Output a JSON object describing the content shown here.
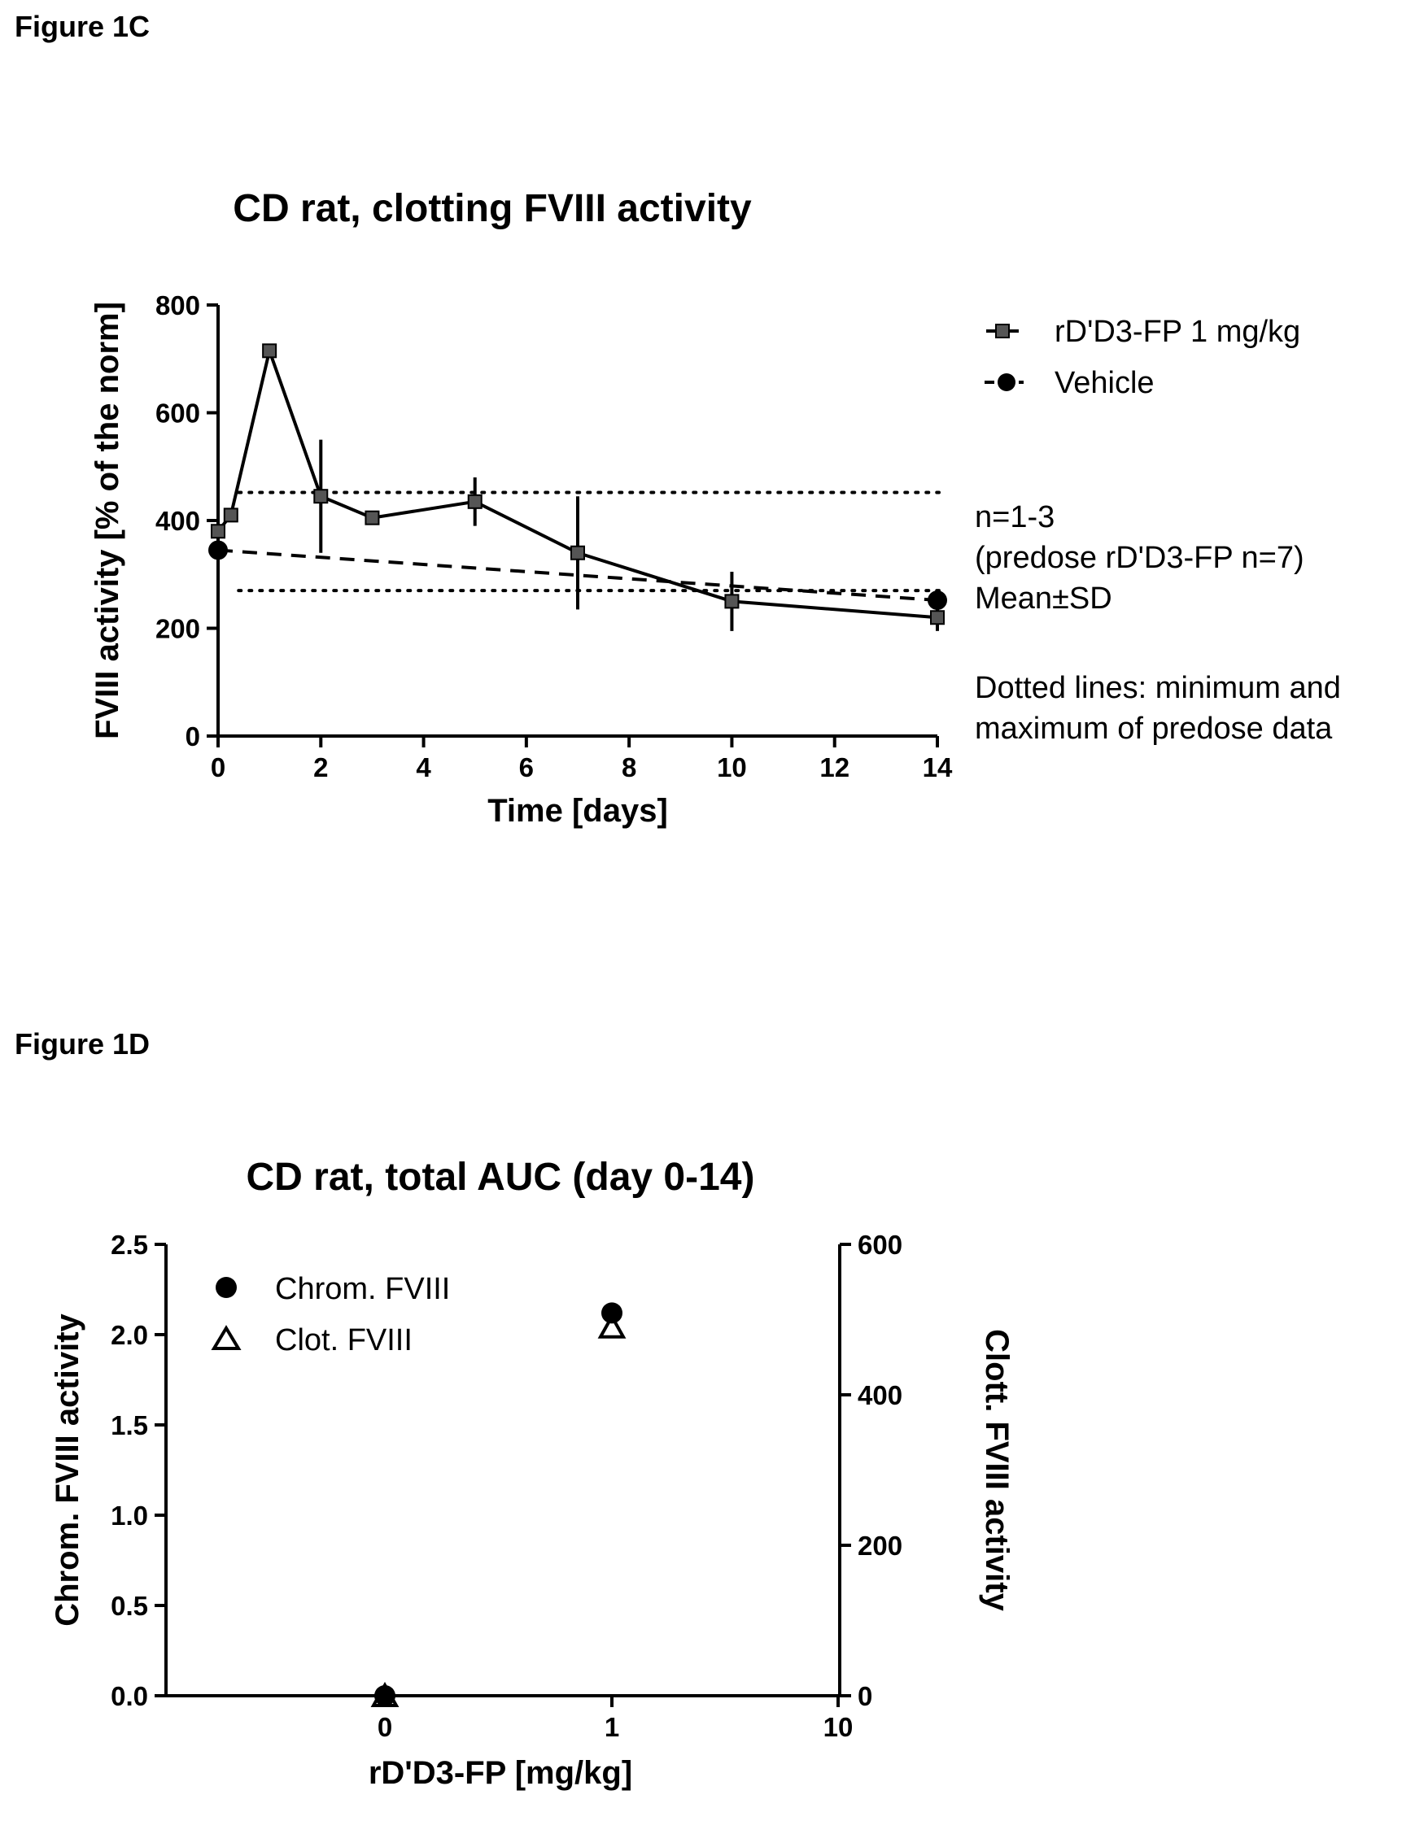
{
  "figure_c_label": "Figure 1C",
  "figure_d_label": "Figure 1D",
  "chart_data": [
    {
      "type": "line",
      "title": "CD rat, clotting FVIII activity",
      "xlabel": "Time [days]",
      "ylabel": "FVIII activity [% of the norm]",
      "xlim": [
        0,
        14
      ],
      "ylim": [
        0,
        800
      ],
      "xticks": [
        "0",
        "2",
        "4",
        "6",
        "8",
        "10",
        "12",
        "14"
      ],
      "yticks": [
        "0",
        "200",
        "400",
        "600",
        "800"
      ],
      "grid": false,
      "legend_position": "top-right",
      "series": [
        {
          "name": "rD'D3-FP 1 mg/kg",
          "marker": "square",
          "line": "solid",
          "x": [
            0,
            0.25,
            1,
            2,
            3,
            5,
            7,
            10,
            14
          ],
          "y": [
            380,
            410,
            715,
            445,
            405,
            435,
            340,
            250,
            220
          ],
          "sd": [
            0,
            0,
            0,
            105,
            0,
            45,
            105,
            55,
            25
          ]
        },
        {
          "name": "Vehicle",
          "marker": "circle",
          "line": "dashed",
          "x": [
            0,
            14
          ],
          "y": [
            345,
            252
          ],
          "sd": [
            0,
            0
          ]
        }
      ],
      "reference_lines": [
        {
          "y": 452,
          "style": "dotted"
        },
        {
          "y": 270,
          "style": "dotted"
        }
      ],
      "annotations": [
        "n=1-3",
        "(predose rD'D3-FP n=7)",
        "Mean±SD",
        "Dotted lines: minimum and",
        "maximum of predose data"
      ]
    },
    {
      "type": "scatter",
      "title": "CD rat, total AUC (day 0-14)",
      "xlabel": "rD'D3-FP [mg/kg]",
      "ylabel": "Chrom. FVIII activity",
      "y2label": "Clott. FVIII activity",
      "x_scale": "log",
      "xticks": [
        "0",
        "1",
        "10"
      ],
      "ylim": [
        0,
        2.5
      ],
      "y2lim": [
        0,
        600
      ],
      "yticks": [
        "0.0",
        "0.5",
        "1.0",
        "1.5",
        "2.0",
        "2.5"
      ],
      "y2ticks": [
        "0",
        "200",
        "400",
        "600"
      ],
      "grid": false,
      "legend_position": "top-left",
      "series": [
        {
          "name": "Chrom. FVIII",
          "marker": "filled-circle",
          "axis": "left",
          "x": [
            0,
            1
          ],
          "y": [
            0,
            2.12
          ]
        },
        {
          "name": "Clot. FVIII",
          "marker": "open-triangle",
          "axis": "right",
          "x": [
            0,
            1
          ],
          "y": [
            0,
            490
          ]
        }
      ]
    }
  ]
}
